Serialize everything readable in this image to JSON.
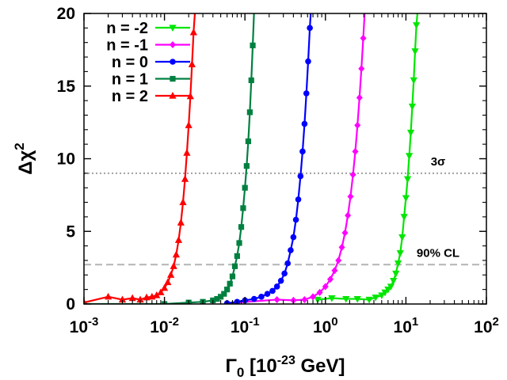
{
  "chart_data": {
    "type": "line",
    "xlabel": {
      "main": "Γ",
      "sub": "0",
      "pre": " [10",
      "sup": "-23",
      "post": " GeV]"
    },
    "ylabel": {
      "main": "Δχ",
      "sup": "2"
    },
    "x_scale": "log",
    "xlim": [
      0.001,
      100
    ],
    "ylim": [
      0,
      20
    ],
    "x_ticks": [
      {
        "value": 0.001,
        "base": "10",
        "exp": "-3"
      },
      {
        "value": 0.01,
        "base": "10",
        "exp": "-2"
      },
      {
        "value": 0.1,
        "base": "10",
        "exp": "-1"
      },
      {
        "value": 1,
        "base": "10",
        "exp": "0"
      },
      {
        "value": 10,
        "base": "10",
        "exp": "1"
      },
      {
        "value": 100,
        "base": "10",
        "exp": "2"
      }
    ],
    "y_ticks": [
      {
        "value": 0,
        "label": "0"
      },
      {
        "value": 5,
        "label": "5"
      },
      {
        "value": 10,
        "label": "10"
      },
      {
        "value": 15,
        "label": "15"
      },
      {
        "value": 20,
        "label": "20"
      }
    ],
    "legend_position": "top-left",
    "reference_lines": [
      {
        "y": 9.0,
        "label": "3σ",
        "color": "#a0a0a0",
        "style": "dotted"
      },
      {
        "y": 2.71,
        "label": "90% CL",
        "color": "#b4b4b4",
        "style": "dashed"
      }
    ],
    "series": [
      {
        "name": "n = -2",
        "color": "#00e600",
        "marker": "triangle-down",
        "points": [
          [
            0.8,
            0.3
          ],
          [
            1.2,
            0.4
          ],
          [
            1.8,
            0.35
          ],
          [
            2.5,
            0.35
          ],
          [
            3.5,
            0.3
          ],
          [
            4.2,
            0.45
          ],
          [
            5.0,
            0.6
          ],
          [
            5.5,
            0.8
          ],
          [
            6.0,
            1.0
          ],
          [
            6.5,
            1.2
          ],
          [
            7.0,
            1.6
          ],
          [
            7.5,
            2.1
          ],
          [
            8.0,
            2.8
          ],
          [
            8.5,
            3.5
          ],
          [
            9.0,
            4.6
          ],
          [
            9.5,
            6.0
          ],
          [
            10.0,
            7.3
          ],
          [
            10.5,
            8.6
          ],
          [
            11.0,
            10.2
          ],
          [
            11.5,
            11.8
          ],
          [
            12.0,
            13.6
          ],
          [
            12.5,
            15.4
          ],
          [
            13.0,
            17.4
          ],
          [
            13.5,
            19.2
          ],
          [
            14.0,
            20.2
          ]
        ]
      },
      {
        "name": "n = -1",
        "color": "#ff00ff",
        "marker": "diamond",
        "points": [
          [
            0.06,
            0.05
          ],
          [
            0.25,
            0.3
          ],
          [
            0.4,
            0.25
          ],
          [
            0.55,
            0.3
          ],
          [
            0.7,
            0.5
          ],
          [
            0.85,
            0.8
          ],
          [
            1.0,
            1.2
          ],
          [
            1.15,
            1.7
          ],
          [
            1.3,
            2.3
          ],
          [
            1.45,
            3.0
          ],
          [
            1.6,
            3.9
          ],
          [
            1.75,
            4.9
          ],
          [
            1.9,
            6.1
          ],
          [
            2.05,
            7.4
          ],
          [
            2.2,
            8.9
          ],
          [
            2.35,
            10.5
          ],
          [
            2.5,
            12.3
          ],
          [
            2.65,
            14.2
          ],
          [
            2.8,
            16.2
          ],
          [
            2.95,
            18.3
          ],
          [
            3.1,
            20.4
          ]
        ]
      },
      {
        "name": "n = 0",
        "color": "#0000ff",
        "marker": "circle",
        "points": [
          [
            0.06,
            0.05
          ],
          [
            0.08,
            0.15
          ],
          [
            0.1,
            0.25
          ],
          [
            0.13,
            0.35
          ],
          [
            0.16,
            0.5
          ],
          [
            0.19,
            0.7
          ],
          [
            0.22,
            0.9
          ],
          [
            0.25,
            1.2
          ],
          [
            0.28,
            1.6
          ],
          [
            0.31,
            2.1
          ],
          [
            0.34,
            2.8
          ],
          [
            0.37,
            3.7
          ],
          [
            0.4,
            4.6
          ],
          [
            0.43,
            5.8
          ],
          [
            0.46,
            7.2
          ],
          [
            0.49,
            8.8
          ],
          [
            0.52,
            10.5
          ],
          [
            0.55,
            12.4
          ],
          [
            0.58,
            14.5
          ],
          [
            0.61,
            16.7
          ],
          [
            0.64,
            19.0
          ],
          [
            0.66,
            20.2
          ]
        ]
      },
      {
        "name": "n = 1",
        "color": "#008040",
        "marker": "square",
        "points": [
          [
            0.001,
            0.0
          ],
          [
            0.01,
            0.0
          ],
          [
            0.02,
            0.1
          ],
          [
            0.03,
            0.15
          ],
          [
            0.04,
            0.25
          ],
          [
            0.045,
            0.35
          ],
          [
            0.05,
            0.5
          ],
          [
            0.055,
            0.7
          ],
          [
            0.06,
            1.0
          ],
          [
            0.065,
            1.4
          ],
          [
            0.07,
            1.9
          ],
          [
            0.075,
            2.6
          ],
          [
            0.08,
            3.3
          ],
          [
            0.085,
            4.2
          ],
          [
            0.09,
            5.3
          ],
          [
            0.095,
            6.6
          ],
          [
            0.1,
            8.0
          ],
          [
            0.105,
            9.5
          ],
          [
            0.11,
            11.2
          ],
          [
            0.115,
            13.2
          ],
          [
            0.12,
            15.4
          ],
          [
            0.125,
            17.8
          ],
          [
            0.13,
            20.2
          ]
        ]
      },
      {
        "name": "n = 2",
        "color": "#ff0000",
        "marker": "triangle-up",
        "points": [
          [
            0.001,
            0.1
          ],
          [
            0.002,
            0.5
          ],
          [
            0.003,
            0.3
          ],
          [
            0.004,
            0.4
          ],
          [
            0.005,
            0.3
          ],
          [
            0.006,
            0.45
          ],
          [
            0.007,
            0.5
          ],
          [
            0.008,
            0.6
          ],
          [
            0.009,
            0.8
          ],
          [
            0.01,
            1.1
          ],
          [
            0.011,
            1.5
          ],
          [
            0.012,
            2.0
          ],
          [
            0.013,
            2.6
          ],
          [
            0.014,
            3.4
          ],
          [
            0.015,
            4.4
          ],
          [
            0.016,
            5.6
          ],
          [
            0.017,
            7.0
          ],
          [
            0.018,
            8.6
          ],
          [
            0.019,
            10.4
          ],
          [
            0.02,
            12.3
          ],
          [
            0.021,
            14.3
          ],
          [
            0.022,
            16.5
          ],
          [
            0.023,
            18.7
          ],
          [
            0.024,
            20.2
          ]
        ]
      }
    ]
  }
}
